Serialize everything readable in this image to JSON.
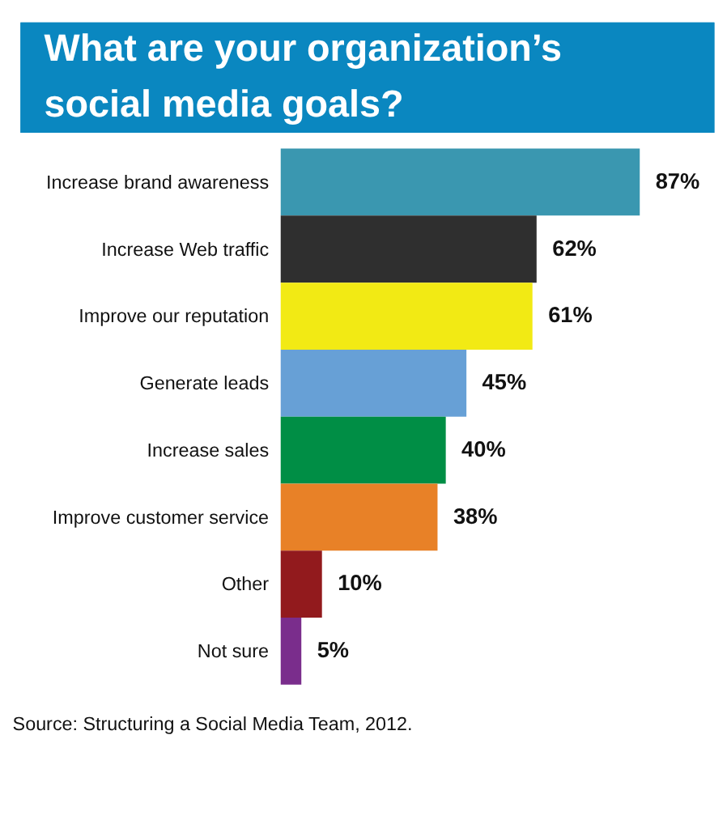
{
  "chart_data": {
    "type": "bar",
    "orientation": "horizontal",
    "title": "What are your organization’s\nsocial media goals?",
    "categories": [
      "Increase brand awareness",
      "Increase Web traffic",
      "Improve our reputation",
      "Generate leads",
      "Increase sales",
      "Improve customer service",
      "Other",
      "Not sure"
    ],
    "values": [
      87,
      62,
      61,
      45,
      40,
      38,
      10,
      5
    ],
    "value_labels": [
      "87%",
      "62%",
      "61%",
      "45%",
      "40%",
      "38%",
      "10%",
      "5%"
    ],
    "colors": [
      "#3a97b0",
      "#2f2f2f",
      "#f2ea14",
      "#67a0d6",
      "#008e45",
      "#e88127",
      "#921a1d",
      "#7a2d8c"
    ],
    "annotations": [
      "Source: Structuring a Social Media Team, 2012."
    ]
  }
}
